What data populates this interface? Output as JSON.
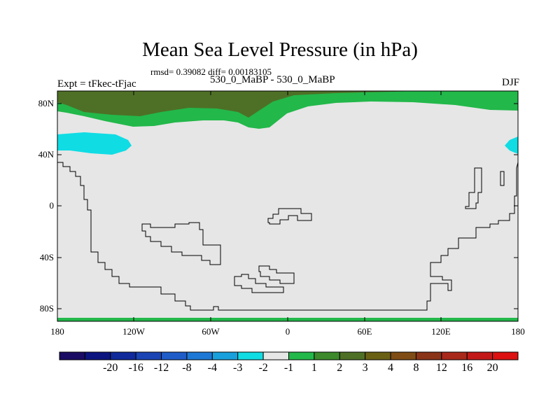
{
  "title": "Mean Sea Level Pressure (in hPa)",
  "stats": "rmsd= 0.39082 diff= 0.00183105",
  "left_label": "Expt = tFkec-tFjac",
  "center_label": "530_0_MaBP - 530_0_MaBP",
  "right_label": "DJF",
  "lat_ticks": [
    "80N",
    "40N",
    "0",
    "40S",
    "80S"
  ],
  "lon_ticks": [
    "180",
    "120W",
    "60W",
    "0",
    "60E",
    "120E",
    "180"
  ],
  "colorbar": {
    "colors": [
      "#1a0c64",
      "#0c1480",
      "#102a9c",
      "#1a44b4",
      "#1e5cc8",
      "#1c78d4",
      "#18a0dc",
      "#10dce4",
      "#e6e6e6",
      "#22b84a",
      "#3c8a2c",
      "#4e7026",
      "#6a6014",
      "#7e4c14",
      "#8a3418",
      "#a8281a",
      "#c21818",
      "#dc1010"
    ],
    "labels": [
      "-20",
      "-16",
      "-12",
      "-8",
      "-4",
      "-3",
      "-2",
      "-1",
      "1",
      "2",
      "3",
      "4",
      "8",
      "12",
      "16",
      "20"
    ]
  },
  "map_colors": {
    "background": "#e6e6e6",
    "dark_green": "#4e7026",
    "green": "#22b84a",
    "cyan": "#10dce4",
    "coast": "#000000"
  }
}
